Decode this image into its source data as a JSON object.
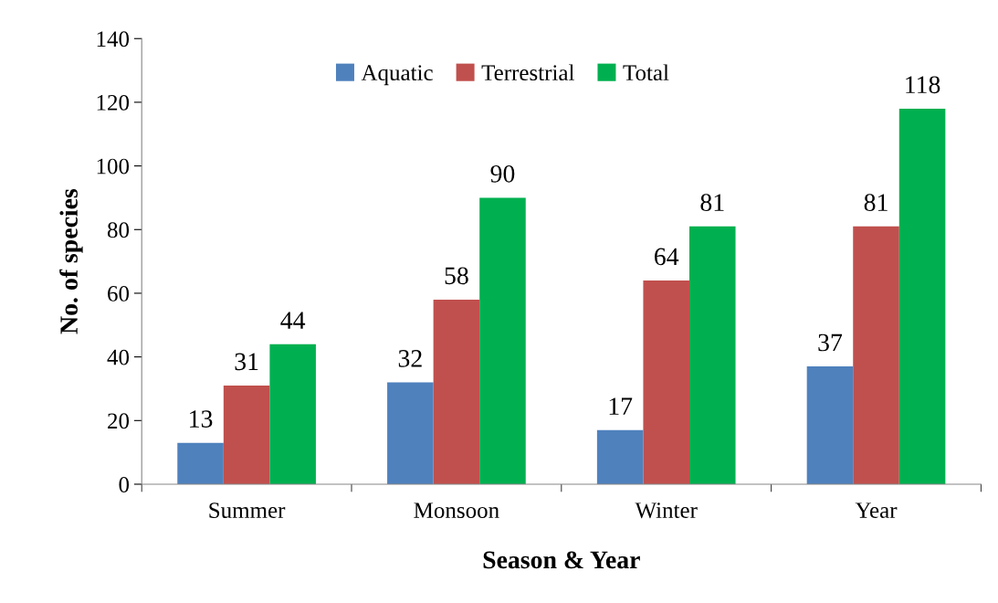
{
  "chart_data": {
    "type": "bar",
    "xlabel": "Season & Year",
    "ylabel": "No. of species",
    "categories": [
      "Summer",
      "Monsoon",
      "Winter",
      "Year"
    ],
    "series": [
      {
        "name": "Aquatic",
        "color": "#4f81bd",
        "values": [
          13,
          32,
          17,
          37
        ]
      },
      {
        "name": "Terrestrial",
        "color": "#c0504d",
        "values": [
          31,
          58,
          64,
          81
        ]
      },
      {
        "name": "Total",
        "color": "#00b050",
        "values": [
          44,
          90,
          81,
          118
        ]
      }
    ],
    "ylim": [
      0,
      140
    ],
    "yticks": [
      0,
      20,
      40,
      60,
      80,
      100,
      120,
      140
    ],
    "data_labels": true,
    "legend": "top",
    "grid": false
  }
}
